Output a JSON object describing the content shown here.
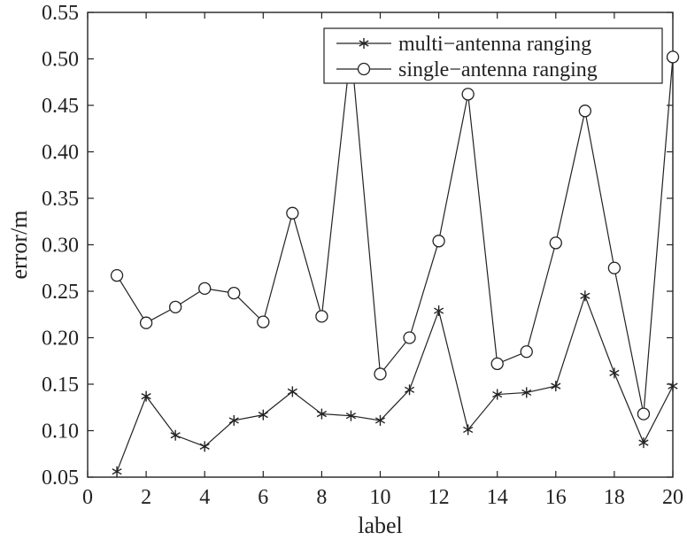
{
  "chart_data": {
    "type": "line",
    "title": "",
    "xlabel": "label",
    "ylabel": "error/m",
    "xlim": [
      0,
      20
    ],
    "ylim": [
      0.05,
      0.55
    ],
    "xticks": [
      0,
      2,
      4,
      6,
      8,
      10,
      12,
      14,
      16,
      18,
      20
    ],
    "xtick_labels": [
      "0",
      "2",
      "4",
      "6",
      "8",
      "10",
      "12",
      "14",
      "16",
      "18",
      "20"
    ],
    "yticks": [
      0.05,
      0.1,
      0.15,
      0.2,
      0.25,
      0.3,
      0.35,
      0.4,
      0.45,
      0.5,
      0.55
    ],
    "ytick_labels": [
      "0.05",
      "0.10",
      "0.15",
      "0.20",
      "0.25",
      "0.30",
      "0.35",
      "0.40",
      "0.45",
      "0.50",
      "0.55"
    ],
    "grid": false,
    "legend_position": "top-right",
    "x": [
      1,
      2,
      3,
      4,
      5,
      6,
      7,
      8,
      9,
      10,
      11,
      12,
      13,
      14,
      15,
      16,
      17,
      18,
      19,
      20
    ],
    "series": [
      {
        "name": "multi−antenna ranging",
        "marker": "asterisk",
        "color": "#222222",
        "values": [
          0.056,
          0.137,
          0.095,
          0.083,
          0.111,
          0.117,
          0.142,
          0.118,
          0.116,
          0.111,
          0.144,
          0.229,
          0.101,
          0.139,
          0.141,
          0.148,
          0.245,
          0.162,
          0.087,
          0.148
        ]
      },
      {
        "name": "single−antenna ranging",
        "marker": "circle",
        "color": "#222222",
        "values": [
          0.267,
          0.216,
          0.233,
          0.253,
          0.248,
          0.217,
          0.334,
          0.223,
          0.512,
          0.161,
          0.2,
          0.304,
          0.462,
          0.172,
          0.185,
          0.302,
          0.444,
          0.275,
          0.118,
          0.502
        ]
      }
    ]
  }
}
